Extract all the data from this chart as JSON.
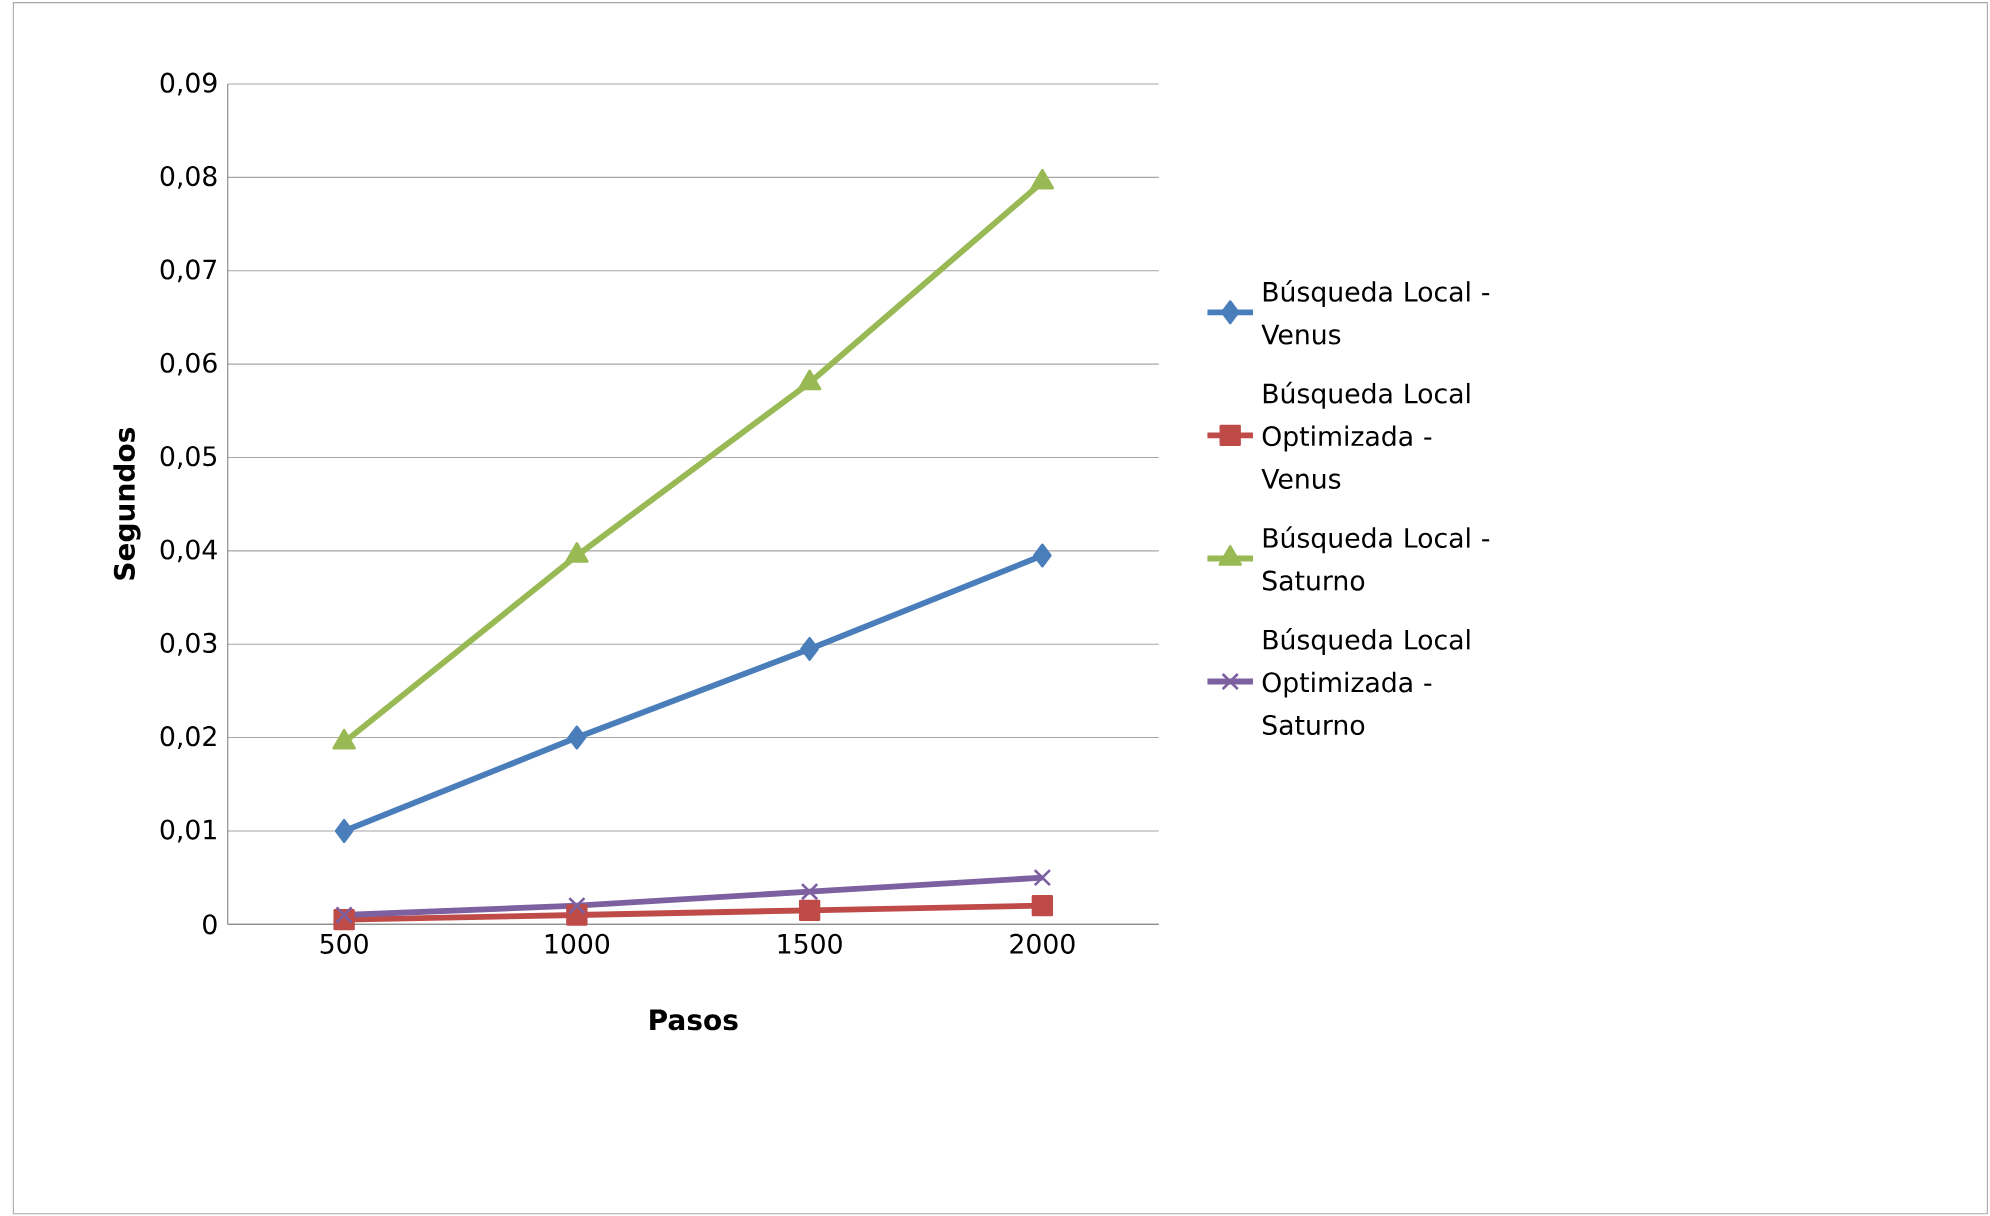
{
  "chart_data": {
    "type": "line",
    "xlabel": "Pasos",
    "ylabel": "Segundos",
    "categories": [
      "500",
      "1000",
      "1500",
      "2000"
    ],
    "series": [
      {
        "name": "Búsqueda Local - Venus",
        "color": "#4a7ebb",
        "marker": "diamond",
        "values": [
          0.01,
          0.02,
          0.0295,
          0.0395
        ]
      },
      {
        "name": "Búsqueda Local Optimizada - Venus",
        "color": "#be4b48",
        "marker": "square",
        "values": [
          0.0005,
          0.001,
          0.0015,
          0.002
        ]
      },
      {
        "name": "Búsqueda Local - Saturno",
        "color": "#98b954",
        "marker": "triangle",
        "values": [
          0.0195,
          0.0395,
          0.058,
          0.0795
        ]
      },
      {
        "name": "Búsqueda Local Optimizada - Saturno",
        "color": "#7d60a0",
        "marker": "cross",
        "values": [
          0.001,
          0.002,
          0.0035,
          0.005
        ]
      }
    ],
    "ylim": [
      0,
      0.09
    ],
    "yticks": [
      0,
      {
        "value": 0.01,
        "label": "0,01"
      },
      {
        "value": 0.02,
        "label": "0,02"
      },
      {
        "value": 0.03,
        "label": "0,03"
      },
      {
        "value": 0.04,
        "label": "0,04"
      },
      {
        "value": 0.05,
        "label": "0,05"
      },
      {
        "value": 0.06,
        "label": "0,06"
      },
      {
        "value": 0.07,
        "label": "0,07"
      },
      {
        "value": 0.08,
        "label": "0,08"
      },
      {
        "value": 0.09,
        "label": "0,09"
      }
    ],
    "grid": "y",
    "legend": "right",
    "line_style": "solid"
  }
}
